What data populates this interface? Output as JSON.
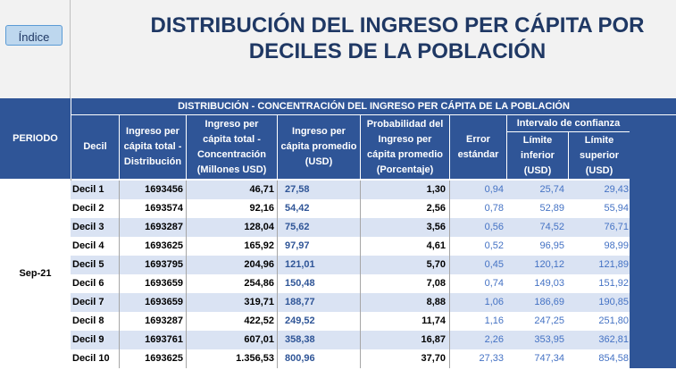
{
  "nav": {
    "indice_label": "Índice"
  },
  "title": {
    "line1": "DISTRIBUCIÓN DEL INGRESO PER CÁPITA POR",
    "line2": "DECILES DE LA POBLACIÓN"
  },
  "table": {
    "banner": "DISTRIBUCIÓN - CONCENTRACIÓN DEL INGRESO PER CÁPITA DE LA POBLACIÓN",
    "headers": {
      "periodo": "PERIODO",
      "decil": "Decil",
      "ingreso_total": [
        "Ingreso per",
        "cápita total -",
        "Distribución"
      ],
      "concentracion": [
        "Ingreso per",
        "cápita total -",
        "Concentración",
        "(Millones USD)"
      ],
      "promedio": [
        "Ingreso per",
        "cápita promedio",
        "(USD)"
      ],
      "probabilidad": [
        "Probabilidad del",
        "Ingreso per",
        "cápita promedio",
        "(Porcentaje)"
      ],
      "error": [
        "Error",
        "estándar"
      ],
      "intervalo": "Intervalo de confianza",
      "limite_inferior": [
        "Límite",
        "inferior",
        "(USD)"
      ],
      "limite_superior": [
        "Límite",
        "superior",
        "(USD)"
      ]
    },
    "period": "Sep-21",
    "rows": [
      {
        "decil": "Decil 1",
        "distribucion": "1693456",
        "concentracion": "46,71",
        "promedio": "27,58",
        "probabilidad": "1,30",
        "error": "0,94",
        "inferior": "25,74",
        "superior": "29,43"
      },
      {
        "decil": "Decil 2",
        "distribucion": "1693574",
        "concentracion": "92,16",
        "promedio": "54,42",
        "probabilidad": "2,56",
        "error": "0,78",
        "inferior": "52,89",
        "superior": "55,94"
      },
      {
        "decil": "Decil 3",
        "distribucion": "1693287",
        "concentracion": "128,04",
        "promedio": "75,62",
        "probabilidad": "3,56",
        "error": "0,56",
        "inferior": "74,52",
        "superior": "76,71"
      },
      {
        "decil": "Decil 4",
        "distribucion": "1693625",
        "concentracion": "165,92",
        "promedio": "97,97",
        "probabilidad": "4,61",
        "error": "0,52",
        "inferior": "96,95",
        "superior": "98,99"
      },
      {
        "decil": "Decil 5",
        "distribucion": "1693795",
        "concentracion": "204,96",
        "promedio": "121,01",
        "probabilidad": "5,70",
        "error": "0,45",
        "inferior": "120,12",
        "superior": "121,89"
      },
      {
        "decil": "Decil 6",
        "distribucion": "1693659",
        "concentracion": "254,86",
        "promedio": "150,48",
        "probabilidad": "7,08",
        "error": "0,74",
        "inferior": "149,03",
        "superior": "151,92"
      },
      {
        "decil": "Decil 7",
        "distribucion": "1693659",
        "concentracion": "319,71",
        "promedio": "188,77",
        "probabilidad": "8,88",
        "error": "1,06",
        "inferior": "186,69",
        "superior": "190,85"
      },
      {
        "decil": "Decil 8",
        "distribucion": "1693287",
        "concentracion": "422,52",
        "promedio": "249,52",
        "probabilidad": "11,74",
        "error": "1,16",
        "inferior": "247,25",
        "superior": "251,80"
      },
      {
        "decil": "Decil 9",
        "distribucion": "1693761",
        "concentracion": "607,01",
        "promedio": "358,38",
        "probabilidad": "16,87",
        "error": "2,26",
        "inferior": "353,95",
        "superior": "362,81"
      },
      {
        "decil": "Decil 10",
        "distribucion": "1693625",
        "concentracion": "1.356,53",
        "promedio": "800,96",
        "probabilidad": "37,70",
        "error": "27,33",
        "inferior": "747,34",
        "superior": "854,58"
      }
    ]
  },
  "colors": {
    "header_bg": "#2f5597",
    "title": "#1f3864",
    "row_alt": "#dae3f3",
    "value_blue": "#4472c4"
  }
}
